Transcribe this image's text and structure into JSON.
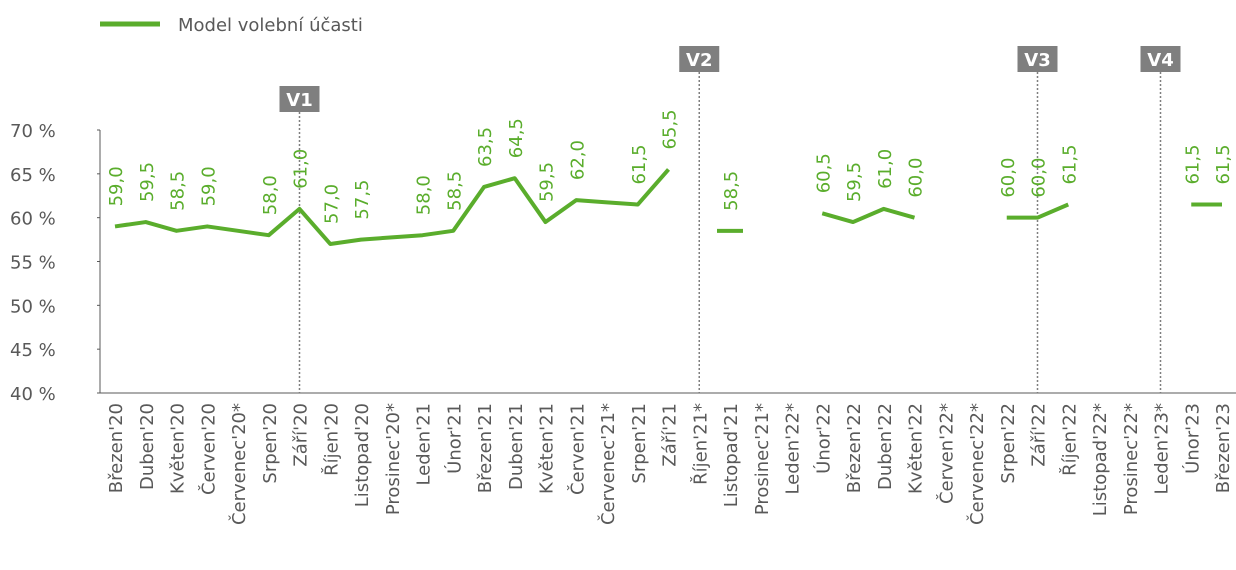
{
  "chart_data": {
    "type": "line",
    "categories": [
      "Březen'20",
      "Duben'20",
      "Květen'20",
      "Červen'20",
      "Červenec'20*",
      "Srpen'20",
      "Září'20",
      "Říjen'20",
      "Listopad'20",
      "Prosinec'20*",
      "Leden'21",
      "Únor'21",
      "Březen'21",
      "Duben'21",
      "Květen'21",
      "Červen'21",
      "Červenec'21*",
      "Srpen'21",
      "Září'21",
      "Říjen'21*",
      "Listopad'21",
      "Prosinec'21*",
      "Leden'22*",
      "Únor'22",
      "Březen'22",
      "Duben'22",
      "Květen'22",
      "Červen'22*",
      "Červenec'22*",
      "Srpen'22",
      "Září'22",
      "Říjen'22",
      "Listopad'22*",
      "Prosinec'22*",
      "Leden'23*",
      "Únor'23",
      "Březen'23"
    ],
    "series": [
      {
        "name": "Model volební účasti",
        "color": "#5aad2c",
        "values": [
          59.0,
          59.5,
          58.5,
          59.0,
          58.5,
          58.0,
          61.0,
          57.0,
          57.5,
          57.75,
          58.0,
          58.5,
          63.5,
          64.5,
          59.5,
          62.0,
          61.75,
          61.5,
          65.5,
          null,
          58.5,
          null,
          null,
          60.5,
          59.5,
          61.0,
          60.0,
          null,
          null,
          60.0,
          60.0,
          61.5,
          null,
          null,
          null,
          61.5,
          61.5
        ],
        "value_labels": [
          "59,0",
          "59,5",
          "58,5",
          "59,0",
          null,
          "58,0",
          "61,0",
          "57,0",
          "57,5",
          null,
          "58,0",
          "58,5",
          "63,5",
          "64,5",
          "59,5",
          "62,0",
          null,
          "61,5",
          "65,5",
          null,
          "58,5",
          null,
          null,
          "60,5",
          "59,5",
          "61,0",
          "60,0",
          null,
          null,
          "60,0",
          "60,0",
          "61,5",
          null,
          null,
          null,
          "61,5",
          "61,5"
        ]
      }
    ],
    "markers": [
      {
        "label": "V1",
        "category": "Září'20"
      },
      {
        "label": "V2",
        "category": "Říjen'21*"
      },
      {
        "label": "V3",
        "category": "Září'22"
      },
      {
        "label": "V4",
        "category": "Leden'23*"
      }
    ],
    "ylim": [
      40,
      70
    ],
    "yticks": [
      {
        "value": 40,
        "label": "40 %"
      },
      {
        "value": 45,
        "label": "45 %"
      },
      {
        "value": 50,
        "label": "50 %"
      },
      {
        "value": 55,
        "label": "55 %"
      },
      {
        "value": 60,
        "label": "60 %"
      },
      {
        "value": 65,
        "label": "65 %"
      },
      {
        "value": 70,
        "label": "70 %"
      }
    ],
    "legend": "top-left"
  }
}
